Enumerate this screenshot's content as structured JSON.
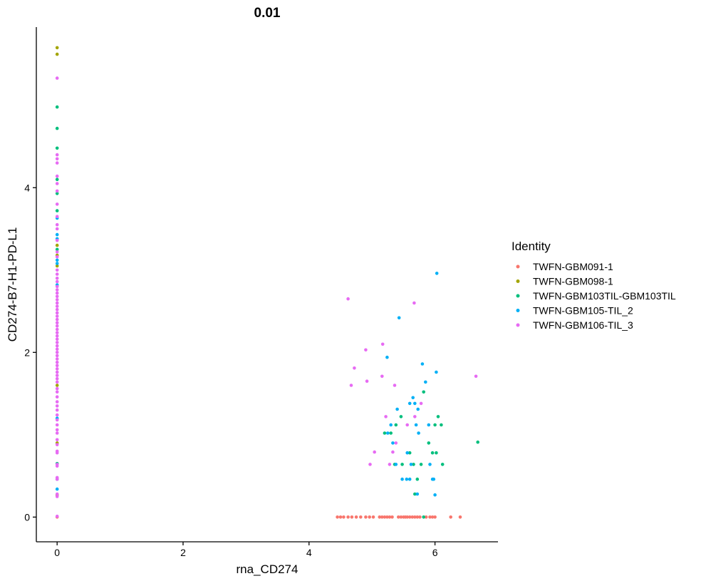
{
  "chart_data": {
    "type": "scatter",
    "title": "0.01",
    "xlabel": "rna_CD274",
    "ylabel": "CD274-B7-H1-PD-L1",
    "xlim": [
      -0.33,
      7.0
    ],
    "ylim": [
      -0.3,
      5.95
    ],
    "x_ticks": [
      0,
      2,
      4,
      6
    ],
    "y_ticks": [
      0,
      2,
      4
    ],
    "x_tick_labels": [
      "0",
      "2",
      "4",
      "6"
    ],
    "y_tick_labels": [
      "0",
      "2",
      "4"
    ],
    "grid": false,
    "legend_position": "right",
    "legend_title": "Identity",
    "series": [
      {
        "name": "TWFN-GBM091-1",
        "color": "#F8766D",
        "points": [
          [
            0,
            0
          ],
          [
            4.45,
            0
          ],
          [
            4.5,
            0
          ],
          [
            4.55,
            0
          ],
          [
            4.62,
            0
          ],
          [
            4.68,
            0
          ],
          [
            4.75,
            0
          ],
          [
            4.82,
            0
          ],
          [
            4.9,
            0
          ],
          [
            4.96,
            0
          ],
          [
            5.02,
            0
          ],
          [
            5.12,
            0
          ],
          [
            5.16,
            0
          ],
          [
            5.2,
            0
          ],
          [
            5.24,
            0
          ],
          [
            5.28,
            0
          ],
          [
            5.32,
            0
          ],
          [
            5.42,
            0
          ],
          [
            5.46,
            0
          ],
          [
            5.5,
            0
          ],
          [
            5.53,
            0
          ],
          [
            5.56,
            0
          ],
          [
            5.6,
            0
          ],
          [
            5.64,
            0
          ],
          [
            5.68,
            0
          ],
          [
            5.72,
            0
          ],
          [
            5.76,
            0
          ],
          [
            5.86,
            0
          ],
          [
            5.92,
            0
          ],
          [
            5.96,
            0
          ],
          [
            6.0,
            0
          ],
          [
            6.25,
            0
          ],
          [
            6.4,
            0
          ]
        ]
      },
      {
        "name": "TWFN-GBM098-1",
        "color": "#A3A500",
        "points": [
          [
            0,
            5.7
          ],
          [
            0,
            5.62
          ],
          [
            0,
            3.3
          ],
          [
            0,
            3.18
          ],
          [
            0,
            3.05
          ],
          [
            0,
            1.6
          ],
          [
            0,
            0.9
          ],
          [
            0,
            0.27
          ]
        ]
      },
      {
        "name": "TWFN-GBM103TIL-GBM103TIL",
        "color": "#00BF7D",
        "points": [
          [
            0,
            4.98
          ],
          [
            0,
            4.72
          ],
          [
            0,
            4.48
          ],
          [
            0,
            4.1
          ],
          [
            0,
            3.93
          ],
          [
            0,
            3.72
          ],
          [
            0,
            3.25
          ],
          [
            0,
            0.65
          ],
          [
            0,
            0.46
          ],
          [
            5.2,
            1.02
          ],
          [
            5.3,
            1.02
          ],
          [
            5.38,
            1.12
          ],
          [
            5.46,
            1.22
          ],
          [
            5.36,
            0.64
          ],
          [
            5.48,
            0.64
          ],
          [
            5.6,
            0.78
          ],
          [
            5.66,
            0.64
          ],
          [
            5.68,
            0.28
          ],
          [
            5.72,
            0.46
          ],
          [
            5.78,
            0.64
          ],
          [
            5.82,
            1.52
          ],
          [
            5.9,
            0.9
          ],
          [
            5.96,
            0.78
          ],
          [
            6.02,
            0.78
          ],
          [
            6.0,
            1.12
          ],
          [
            6.05,
            1.22
          ],
          [
            6.1,
            1.12
          ],
          [
            6.12,
            0.64
          ],
          [
            6.68,
            0.91
          ],
          [
            5.82,
            0
          ]
        ]
      },
      {
        "name": "TWFN-GBM105-TIL_2",
        "color": "#00B0F6",
        "points": [
          [
            0,
            3.63
          ],
          [
            0,
            3.43
          ],
          [
            0,
            3.38
          ],
          [
            0,
            3.12
          ],
          [
            0,
            3.08
          ],
          [
            0,
            2.82
          ],
          [
            0,
            1.2
          ],
          [
            0,
            0.34
          ],
          [
            5.43,
            2.42
          ],
          [
            5.24,
            1.94
          ],
          [
            5.25,
            1.02
          ],
          [
            5.3,
            1.12
          ],
          [
            5.33,
            0.9
          ],
          [
            5.4,
            1.31
          ],
          [
            5.38,
            0.64
          ],
          [
            5.48,
            0.46
          ],
          [
            5.55,
            0.46
          ],
          [
            5.56,
            0.78
          ],
          [
            5.6,
            0.46
          ],
          [
            5.62,
            0.64
          ],
          [
            5.6,
            1.38
          ],
          [
            5.65,
            1.45
          ],
          [
            5.68,
            1.38
          ],
          [
            5.73,
            1.31
          ],
          [
            5.7,
            1.12
          ],
          [
            5.74,
            1.02
          ],
          [
            5.8,
            1.86
          ],
          [
            5.85,
            1.64
          ],
          [
            5.9,
            1.12
          ],
          [
            5.72,
            0.28
          ],
          [
            5.92,
            0.64
          ],
          [
            5.96,
            0.46
          ],
          [
            5.98,
            0.46
          ],
          [
            6.0,
            0.27
          ],
          [
            6.02,
            1.76
          ],
          [
            6.03,
            2.96
          ]
        ]
      },
      {
        "name": "TWFN-GBM106-TIL_3",
        "color": "#E76BF3",
        "points": [
          [
            0,
            5.33
          ],
          [
            0,
            4.4
          ],
          [
            0,
            4.35
          ],
          [
            0,
            4.3
          ],
          [
            0,
            4.14
          ],
          [
            0,
            4.05
          ],
          [
            0,
            3.96
          ],
          [
            0,
            3.8
          ],
          [
            0,
            3.65
          ],
          [
            0,
            3.55
          ],
          [
            0,
            3.5
          ],
          [
            0,
            3.36
          ],
          [
            0,
            3.22
          ],
          [
            0,
            3.16
          ],
          [
            0,
            3.0
          ],
          [
            0,
            2.95
          ],
          [
            0,
            2.9
          ],
          [
            0,
            2.86
          ],
          [
            0,
            2.8
          ],
          [
            0,
            2.76
          ],
          [
            0,
            2.72
          ],
          [
            0,
            2.68
          ],
          [
            0,
            2.64
          ],
          [
            0,
            2.6
          ],
          [
            0,
            2.56
          ],
          [
            0,
            2.52
          ],
          [
            0,
            2.48
          ],
          [
            0,
            2.44
          ],
          [
            0,
            2.4
          ],
          [
            0,
            2.36
          ],
          [
            0,
            2.32
          ],
          [
            0,
            2.28
          ],
          [
            0,
            2.24
          ],
          [
            0,
            2.2
          ],
          [
            0,
            2.16
          ],
          [
            0,
            2.12
          ],
          [
            0,
            2.08
          ],
          [
            0,
            2.04
          ],
          [
            0,
            2.0
          ],
          [
            0,
            1.96
          ],
          [
            0,
            1.92
          ],
          [
            0,
            1.88
          ],
          [
            0,
            1.84
          ],
          [
            0,
            1.8
          ],
          [
            0,
            1.76
          ],
          [
            0,
            1.72
          ],
          [
            0,
            1.68
          ],
          [
            0,
            1.64
          ],
          [
            0,
            1.56
          ],
          [
            0,
            1.52
          ],
          [
            0,
            1.46
          ],
          [
            0,
            1.4
          ],
          [
            0,
            1.35
          ],
          [
            0,
            1.3
          ],
          [
            0,
            1.24
          ],
          [
            0,
            1.18
          ],
          [
            0,
            1.12
          ],
          [
            0,
            1.06
          ],
          [
            0,
            1.02
          ],
          [
            0,
            0.94
          ],
          [
            0,
            0.88
          ],
          [
            0,
            0.8
          ],
          [
            0,
            0.78
          ],
          [
            0,
            0.64
          ],
          [
            0,
            0.62
          ],
          [
            0,
            0.48
          ],
          [
            0,
            0.46
          ],
          [
            0,
            0.28
          ],
          [
            0,
            0.25
          ],
          [
            0,
            0.01
          ],
          [
            4.62,
            2.65
          ],
          [
            4.67,
            1.6
          ],
          [
            4.72,
            1.81
          ],
          [
            4.9,
            2.03
          ],
          [
            4.92,
            1.65
          ],
          [
            4.97,
            0.64
          ],
          [
            5.04,
            0.79
          ],
          [
            5.16,
            1.71
          ],
          [
            5.17,
            2.1
          ],
          [
            5.22,
            1.22
          ],
          [
            5.28,
            0.64
          ],
          [
            5.33,
            0.79
          ],
          [
            5.36,
            1.6
          ],
          [
            5.38,
            0.9
          ],
          [
            5.56,
            1.12
          ],
          [
            5.67,
            2.6
          ],
          [
            5.68,
            1.22
          ],
          [
            5.78,
            1.38
          ],
          [
            6.65,
            1.71
          ]
        ]
      }
    ]
  }
}
